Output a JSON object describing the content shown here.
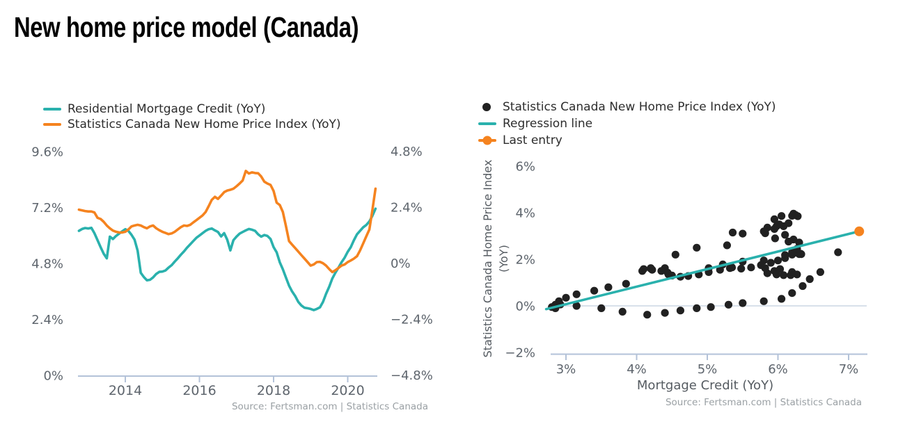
{
  "header": {
    "title": "New home price model (Canada)"
  },
  "colors": {
    "teal": "#2ab1ad",
    "orange": "#f5831f",
    "dot": "#212121",
    "axis_line": "#b3c2d8",
    "zero_line": "#ccd6e3",
    "tick_text": "#5e656d",
    "label_text": "#555b61",
    "source_text": "#9aa0a4",
    "legend_text": "#2d2d2d"
  },
  "left_chart": {
    "legend": [
      {
        "label": "Residential Mortgage Credit (YoY)",
        "marker": "line",
        "color": "#2ab1ad"
      },
      {
        "label": "Statistics Canada New Home Price Index (YoY)",
        "marker": "line",
        "color": "#f5831f"
      }
    ],
    "source": "Source: Fertsman.com | Statistics Canada"
  },
  "right_chart": {
    "legend": [
      {
        "label": "Statistics Canada New Home Price Index (YoY)",
        "marker": "dot",
        "color": "#212121"
      },
      {
        "label": "Regression line",
        "marker": "line",
        "color": "#2ab1ad"
      },
      {
        "label": "Last entry",
        "marker": "line-dot",
        "color": "#f5831f"
      }
    ],
    "y_axis_label_line1": "Statistics Canada Home Price Index",
    "y_axis_label_line2": "(YoY)",
    "x_axis_label": "Mortgage Credit (YoY)",
    "source": "Source: Fertsman.com | Statistics Canada"
  },
  "chart_data": [
    {
      "type": "line",
      "title": "",
      "x_unit": "decimal_year_monthly",
      "x_start": 2012.75,
      "x_step": 0.0833333,
      "x_axis": {
        "tick_values": [
          2014,
          2016,
          2018,
          2020
        ],
        "tick_labels": [
          "2014",
          "2016",
          "2018",
          "2020"
        ],
        "range": [
          2012.75,
          2020.8
        ]
      },
      "y_axis_left": {
        "tick_values": [
          9.6,
          7.2,
          4.8,
          2.4,
          0
        ],
        "tick_labels": [
          "9.6%",
          "7.2%",
          "4.8%",
          "2.4%",
          "0%"
        ],
        "range": [
          0,
          9.6
        ]
      },
      "y_axis_right": {
        "tick_values": [
          4.8,
          2.4,
          0,
          -2.4,
          -4.8
        ],
        "tick_labels": [
          "4.8%",
          "2.4%",
          "0%",
          "−2.4%",
          "−4.8%"
        ],
        "range": [
          -4.8,
          4.8
        ]
      },
      "grid": false,
      "legend_position": "top-left",
      "series": [
        {
          "name": "Residential Mortgage Credit (YoY)",
          "axis": "left",
          "color": "#2ab1ad",
          "values": [
            6.2,
            6.28,
            6.32,
            6.3,
            6.33,
            6.1,
            5.8,
            5.5,
            5.22,
            5.02,
            5.95,
            5.85,
            5.98,
            6.08,
            6.18,
            6.27,
            6.2,
            6.03,
            5.82,
            5.35,
            4.4,
            4.22,
            4.08,
            4.1,
            4.2,
            4.35,
            4.44,
            4.45,
            4.5,
            4.62,
            4.73,
            4.88,
            5.02,
            5.18,
            5.32,
            5.48,
            5.62,
            5.76,
            5.9,
            6.0,
            6.1,
            6.2,
            6.27,
            6.3,
            6.22,
            6.15,
            5.96,
            6.1,
            5.82,
            5.36,
            5.8,
            5.95,
            6.08,
            6.15,
            6.22,
            6.28,
            6.25,
            6.2,
            6.05,
            5.95,
            6.02,
            5.98,
            5.85,
            5.5,
            5.28,
            4.85,
            4.55,
            4.2,
            3.85,
            3.6,
            3.4,
            3.15,
            3.0,
            2.9,
            2.88,
            2.85,
            2.8,
            2.85,
            2.92,
            3.15,
            3.5,
            3.8,
            4.15,
            4.4,
            4.62,
            4.85,
            5.05,
            5.3,
            5.5,
            5.8,
            6.05,
            6.2,
            6.35,
            6.45,
            6.6,
            6.85,
            7.15
          ]
        },
        {
          "name": "Statistics Canada New Home Price Index (YoY)",
          "axis": "right",
          "color": "#f5831f",
          "values": [
            2.3,
            2.27,
            2.24,
            2.22,
            2.22,
            2.18,
            1.95,
            1.9,
            1.78,
            1.62,
            1.5,
            1.4,
            1.35,
            1.32,
            1.32,
            1.35,
            1.45,
            1.58,
            1.62,
            1.65,
            1.62,
            1.55,
            1.5,
            1.58,
            1.62,
            1.5,
            1.42,
            1.35,
            1.3,
            1.25,
            1.28,
            1.35,
            1.45,
            1.55,
            1.62,
            1.6,
            1.65,
            1.75,
            1.85,
            1.95,
            2.05,
            2.2,
            2.45,
            2.72,
            2.85,
            2.76,
            2.9,
            3.05,
            3.12,
            3.15,
            3.2,
            3.3,
            3.42,
            3.55,
            3.96,
            3.85,
            3.9,
            3.87,
            3.86,
            3.72,
            3.5,
            3.42,
            3.36,
            3.1,
            2.6,
            2.5,
            2.2,
            1.6,
            0.95,
            0.8,
            0.65,
            0.5,
            0.35,
            0.2,
            0.05,
            -0.1,
            -0.05,
            0.05,
            0.06,
            0.0,
            -0.1,
            -0.25,
            -0.38,
            -0.3,
            -0.2,
            -0.1,
            -0.05,
            0.05,
            0.12,
            0.2,
            0.3,
            0.55,
            0.85,
            1.15,
            1.45,
            2.3,
            3.2
          ]
        }
      ]
    },
    {
      "type": "scatter",
      "title": "",
      "xlabel": "Mortgage Credit (YoY)",
      "ylabel": "Statistics Canada Home Price Index (YoY)",
      "x_axis": {
        "tick_values": [
          3,
          4,
          5,
          6,
          7
        ],
        "tick_labels": [
          "3%",
          "4%",
          "5%",
          "6%",
          "7%"
        ],
        "range": [
          2.7,
          7.3
        ]
      },
      "y_axis": {
        "tick_values": [
          6,
          4,
          2,
          0,
          -2
        ],
        "tick_labels": [
          "6%",
          "4%",
          "2%",
          "0%",
          "−2%"
        ],
        "range": [
          -2.1,
          6.3
        ]
      },
      "zero_line": true,
      "legend_position": "top-left",
      "x": [
        6.2,
        6.28,
        6.32,
        6.3,
        6.33,
        6.1,
        5.8,
        5.5,
        5.22,
        5.02,
        5.95,
        5.85,
        5.98,
        6.08,
        6.18,
        6.27,
        6.2,
        6.03,
        5.82,
        5.35,
        4.4,
        4.22,
        4.08,
        4.1,
        4.2,
        4.35,
        4.44,
        4.45,
        4.5,
        4.62,
        4.73,
        4.88,
        5.02,
        5.18,
        5.32,
        5.48,
        5.62,
        5.76,
        5.9,
        6.0,
        6.1,
        6.2,
        6.27,
        6.3,
        6.22,
        6.15,
        5.96,
        6.1,
        5.82,
        5.36,
        5.8,
        5.95,
        6.08,
        6.15,
        6.22,
        6.28,
        6.25,
        6.2,
        6.05,
        5.95,
        6.02,
        5.98,
        5.85,
        5.5,
        5.28,
        4.85,
        4.55,
        4.2,
        3.85,
        3.6,
        3.4,
        3.15,
        3.0,
        2.9,
        2.88,
        2.85,
        2.8,
        2.85,
        2.92,
        3.15,
        3.5,
        3.8,
        4.15,
        4.4,
        4.62,
        4.85,
        5.05,
        5.3,
        5.5,
        5.8,
        6.05,
        6.2,
        6.35,
        6.45,
        6.6,
        6.85,
        7.15
      ],
      "y": [
        2.3,
        2.27,
        2.24,
        2.22,
        2.22,
        2.18,
        1.95,
        1.9,
        1.78,
        1.62,
        1.5,
        1.4,
        1.35,
        1.32,
        1.32,
        1.35,
        1.45,
        1.58,
        1.62,
        1.65,
        1.62,
        1.55,
        1.5,
        1.58,
        1.62,
        1.5,
        1.42,
        1.35,
        1.3,
        1.25,
        1.28,
        1.35,
        1.45,
        1.55,
        1.62,
        1.6,
        1.65,
        1.75,
        1.85,
        1.95,
        2.05,
        2.2,
        2.45,
        2.72,
        2.85,
        2.76,
        2.9,
        3.05,
        3.12,
        3.15,
        3.2,
        3.3,
        3.42,
        3.55,
        3.96,
        3.85,
        3.9,
        3.87,
        3.86,
        3.72,
        3.5,
        3.42,
        3.36,
        3.1,
        2.6,
        2.5,
        2.2,
        1.6,
        0.95,
        0.8,
        0.65,
        0.5,
        0.35,
        0.2,
        0.05,
        -0.1,
        -0.05,
        0.05,
        0.06,
        0.0,
        -0.1,
        -0.25,
        -0.38,
        -0.3,
        -0.2,
        -0.1,
        -0.05,
        0.05,
        0.12,
        0.2,
        0.3,
        0.55,
        0.85,
        1.15,
        1.45,
        2.3,
        3.2
      ],
      "regression_line": {
        "x": [
          2.72,
          7.15
        ],
        "y": [
          -0.14,
          3.2
        ],
        "color": "#2ab1ad"
      },
      "last_entry": {
        "x": 7.15,
        "y": 3.2,
        "color": "#f5831f"
      }
    }
  ]
}
